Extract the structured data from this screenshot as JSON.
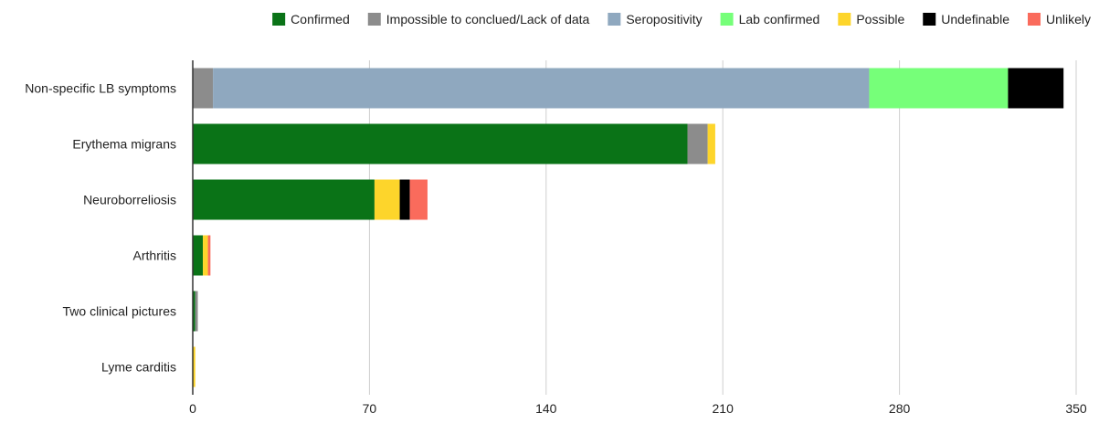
{
  "chart_data": {
    "type": "bar",
    "orientation": "horizontal",
    "stacked": true,
    "categories": [
      "Non-specific LB symptoms",
      "Erythema migrans",
      "Neuroborreliosis",
      "Arthritis",
      "Two clinical pictures",
      "Lyme carditis"
    ],
    "series": [
      {
        "name": "Confirmed",
        "color": "#0a7317",
        "values": [
          0,
          196,
          72,
          4,
          1,
          0
        ]
      },
      {
        "name": "Impossible to conclued/Lack of data",
        "color": "#8c8c8c",
        "values": [
          8,
          8,
          0,
          0,
          1,
          0
        ]
      },
      {
        "name": "Seropositivity",
        "color": "#8fa8bf",
        "values": [
          260,
          0,
          0,
          0,
          0,
          0
        ]
      },
      {
        "name": "Lab confirmed",
        "color": "#76ff79",
        "values": [
          55,
          0,
          0,
          0,
          0,
          0
        ]
      },
      {
        "name": "Possible",
        "color": "#fdd52b",
        "values": [
          0,
          3,
          10,
          2,
          0,
          1
        ]
      },
      {
        "name": "Undefinable",
        "color": "#000000",
        "values": [
          22,
          0,
          4,
          0,
          0,
          0
        ]
      },
      {
        "name": "Unlikely",
        "color": "#fa6b5c",
        "values": [
          0,
          0,
          7,
          1,
          0,
          0
        ]
      }
    ],
    "xlim": [
      0,
      350
    ],
    "xticks": [
      0,
      70,
      140,
      210,
      280,
      350
    ],
    "grid": "vertical",
    "legend_position": "top-right"
  }
}
